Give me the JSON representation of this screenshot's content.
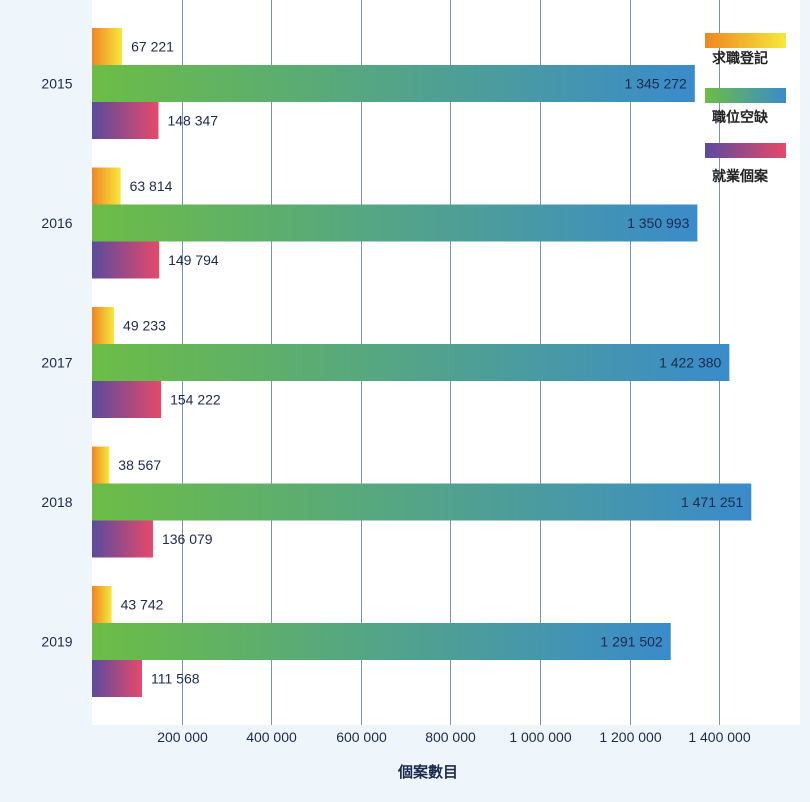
{
  "chart_data": {
    "type": "bar",
    "orientation": "horizontal",
    "xlabel": "個案數目",
    "categories": [
      "2015",
      "2016",
      "2017",
      "2018",
      "2019"
    ],
    "series": [
      {
        "name": "求職登記",
        "values": [
          67221,
          63814,
          49233,
          38567,
          43742
        ],
        "color_start": "#ef8623",
        "color_end": "#f6e83b"
      },
      {
        "name": "職位空缺",
        "values": [
          1345272,
          1350993,
          1422380,
          1471251,
          1291502
        ],
        "color_start": "#6cbd45",
        "color_end": "#3a8bcb"
      },
      {
        "name": "就業個案",
        "values": [
          148347,
          149794,
          154222,
          136079,
          111568
        ],
        "color_start": "#5a4b9d",
        "color_end": "#e6496b"
      }
    ],
    "xlim": [
      0,
      1580000
    ],
    "x_ticks": [
      200000,
      400000,
      600000,
      800000,
      1000000,
      1200000,
      1400000
    ],
    "x_tick_labels": [
      "200 000",
      "400 000",
      "600 000",
      "800 000",
      "1 000 000",
      "1 200 000",
      "1 400 000"
    ],
    "grid": "vertical",
    "legend_position": "top-right"
  },
  "colors": {
    "background": "#eef6fc",
    "plot": "#ffffff",
    "grid": "#7b93b3",
    "text": "#1c2a4e"
  }
}
